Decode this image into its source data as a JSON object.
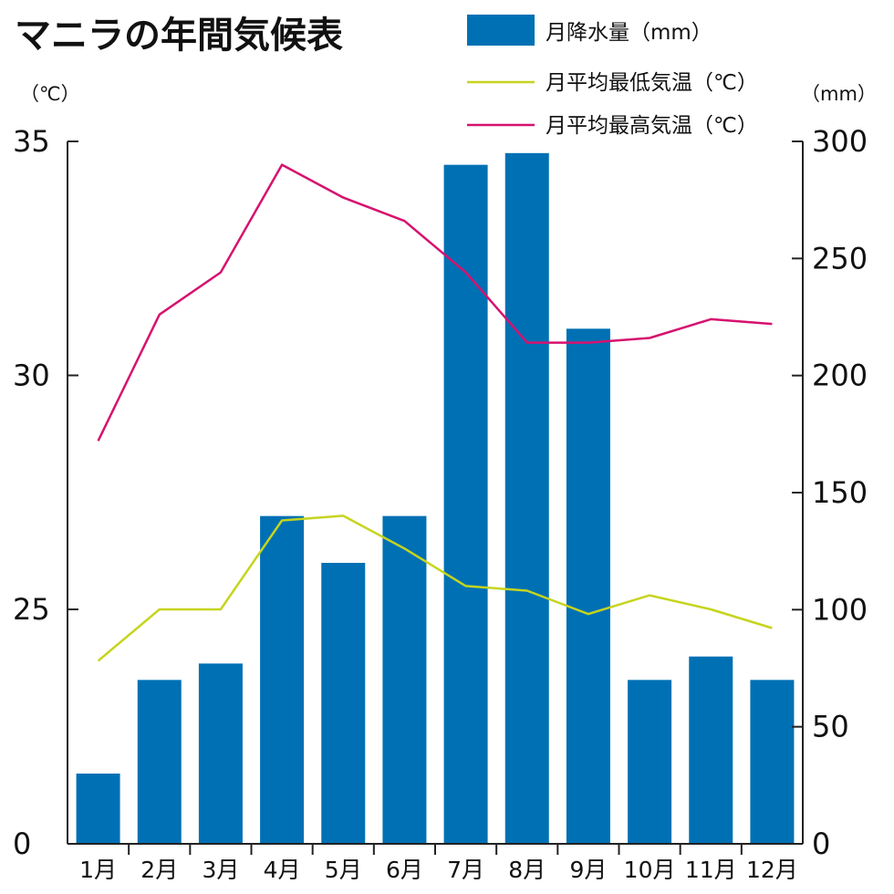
{
  "chart_data": {
    "type": "bar+line",
    "title": "マニラの年間気候表",
    "categories": [
      "1月",
      "2月",
      "3月",
      "4月",
      "5月",
      "6月",
      "7月",
      "8月",
      "9月",
      "10月",
      "11月",
      "12月"
    ],
    "y_left": {
      "unit": "（℃）",
      "ylim": [
        0,
        35
      ],
      "ticks": [
        "35",
        "30",
        "25",
        "0"
      ]
    },
    "y_right": {
      "unit": "（mm）",
      "ylim": [
        0,
        300
      ],
      "ticks": [
        "300",
        "250",
        "200",
        "150",
        "100",
        "50",
        "0"
      ]
    },
    "series": [
      {
        "name": "月降水量（mm）",
        "type": "bar",
        "axis": "right",
        "color": "#0070b4",
        "values": [
          30,
          70,
          77,
          140,
          120,
          140,
          290,
          295,
          220,
          70,
          80,
          70
        ]
      },
      {
        "name": "月平均最低気温（℃）",
        "type": "line",
        "axis": "left",
        "color": "#c6d41e",
        "values": [
          23.9,
          25.0,
          25.0,
          26.9,
          27.0,
          26.3,
          25.5,
          25.4,
          24.9,
          25.3,
          25.0,
          24.6
        ]
      },
      {
        "name": "月平均最高気温（℃）",
        "type": "line",
        "axis": "left",
        "color": "#d6126f",
        "values": [
          28.6,
          31.3,
          32.2,
          34.5,
          33.8,
          33.3,
          32.2,
          30.7,
          30.7,
          30.8,
          31.2,
          31.1
        ]
      }
    ],
    "grid": false,
    "legend_position": "top-right"
  }
}
